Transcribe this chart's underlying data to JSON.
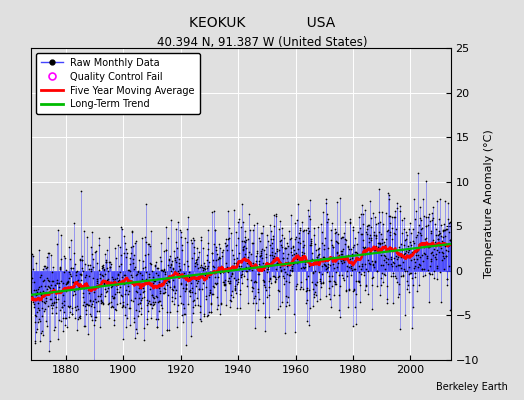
{
  "title1": "KEOKUK              USA",
  "title2": "40.394 N, 91.387 W (United States)",
  "ylabel": "Temperature Anomaly (°C)",
  "credit": "Berkeley Earth",
  "xlim": [
    1868,
    2014
  ],
  "ylim": [
    -10,
    25
  ],
  "yticks": [
    -10,
    -5,
    0,
    5,
    10,
    15,
    20,
    25
  ],
  "xticks": [
    1880,
    1900,
    1920,
    1940,
    1960,
    1980,
    2000
  ],
  "start_year": 1868,
  "end_year": 2013,
  "raw_line_color": "#4444ff",
  "dot_color": "#000000",
  "ma_color": "#ff0000",
  "trend_color": "#00bb00",
  "qc_color": "#ff00ff",
  "bg_color": "#e0e0e0",
  "grid_color": "#ffffff",
  "seed": 42,
  "noise_std": 2.8,
  "seasonal_amp": 0.0,
  "trend_slope": 0.003
}
